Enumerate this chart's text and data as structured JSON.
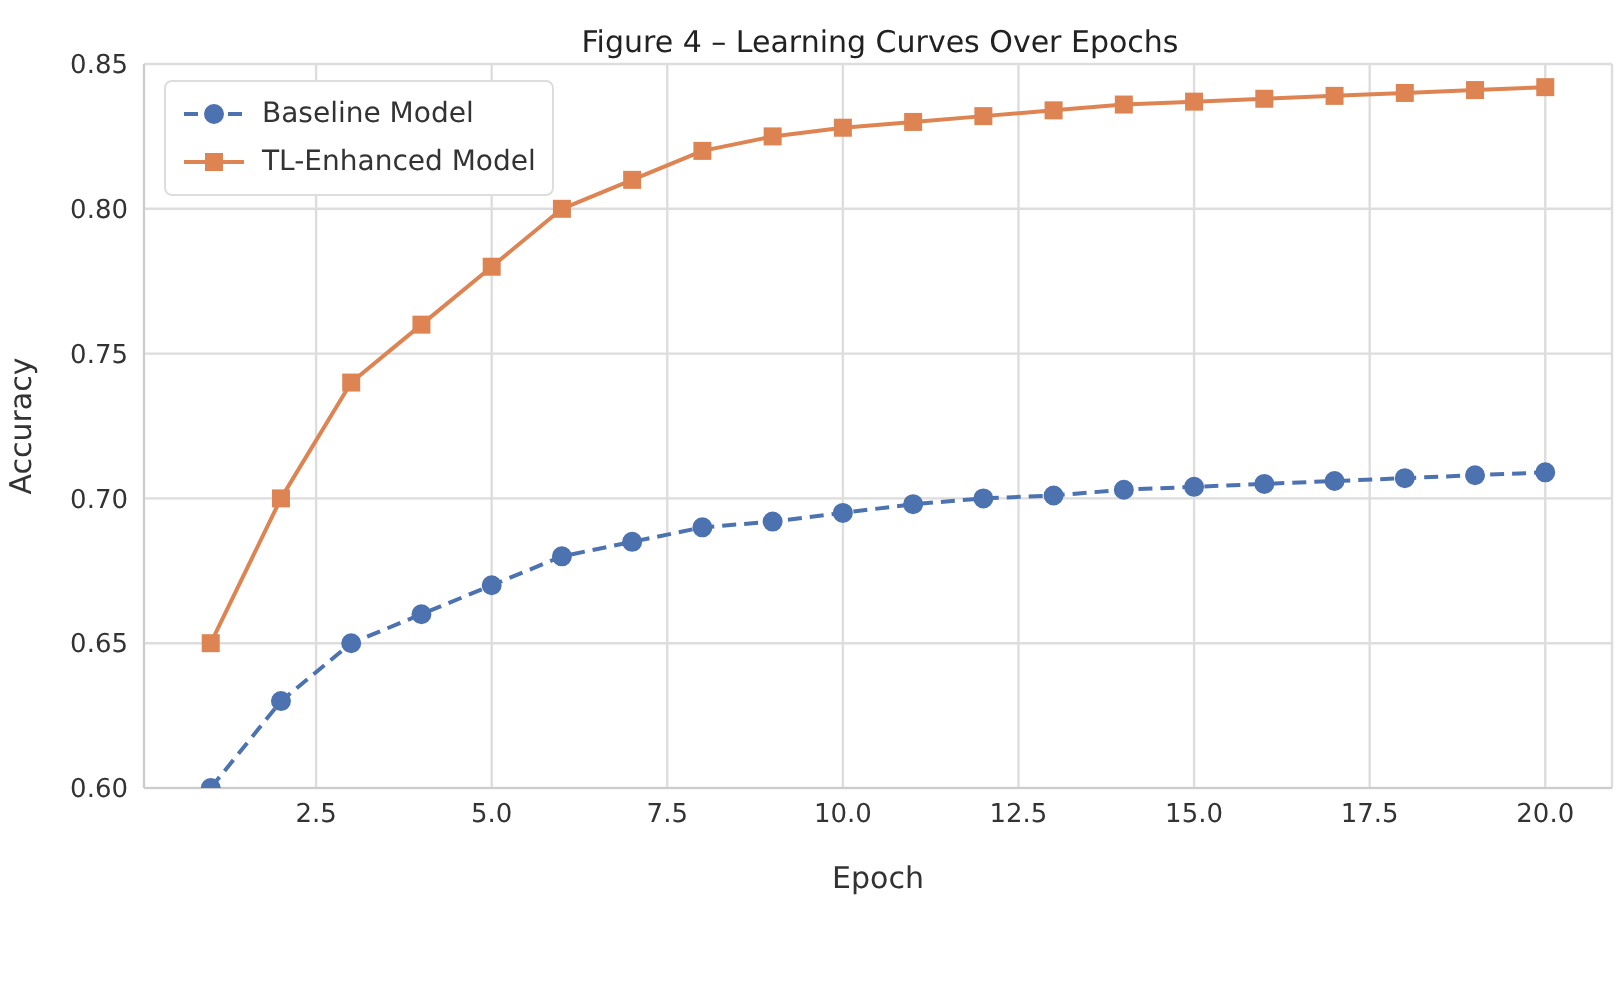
{
  "chart_data": {
    "type": "line",
    "title": "Figure 4 – Learning Curves Over Epochs",
    "xlabel": "Epoch",
    "ylabel": "Accuracy",
    "x": [
      1,
      2,
      3,
      4,
      5,
      6,
      7,
      8,
      9,
      10,
      11,
      12,
      13,
      14,
      15,
      16,
      17,
      18,
      19,
      20
    ],
    "series": [
      {
        "name": "Baseline Model",
        "color": "#4c72b0",
        "marker": "circle",
        "line_style": "dashed",
        "values": [
          0.6,
          0.63,
          0.65,
          0.66,
          0.67,
          0.68,
          0.685,
          0.69,
          0.692,
          0.695,
          0.698,
          0.7,
          0.701,
          0.703,
          0.704,
          0.705,
          0.706,
          0.707,
          0.708,
          0.709
        ]
      },
      {
        "name": "TL-Enhanced Model",
        "color": "#dd8452",
        "marker": "square",
        "line_style": "solid",
        "values": [
          0.65,
          0.7,
          0.74,
          0.76,
          0.78,
          0.8,
          0.81,
          0.82,
          0.825,
          0.828,
          0.83,
          0.832,
          0.834,
          0.836,
          0.837,
          0.838,
          0.839,
          0.84,
          0.841,
          0.842
        ]
      }
    ],
    "xlim": [
      0.05,
      20.95
    ],
    "xticks": [
      {
        "value": 2.5,
        "label": "2.5"
      },
      {
        "value": 5,
        "label": "5.0"
      },
      {
        "value": 7.5,
        "label": "7.5"
      },
      {
        "value": 10,
        "label": "10.0"
      },
      {
        "value": 12.5,
        "label": "12.5"
      },
      {
        "value": 15,
        "label": "15.0"
      },
      {
        "value": 17.5,
        "label": "17.5"
      },
      {
        "value": 20,
        "label": "20.0"
      }
    ],
    "ylim": [
      0.6,
      0.85
    ],
    "yticks": [
      {
        "value": 0.6,
        "label": "0.60"
      },
      {
        "value": 0.65,
        "label": "0.65"
      },
      {
        "value": 0.7,
        "label": "0.70"
      },
      {
        "value": 0.75,
        "label": "0.75"
      },
      {
        "value": 0.8,
        "label": "0.80"
      },
      {
        "value": 0.85,
        "label": "0.85"
      }
    ],
    "grid": true,
    "legend": "top left"
  }
}
